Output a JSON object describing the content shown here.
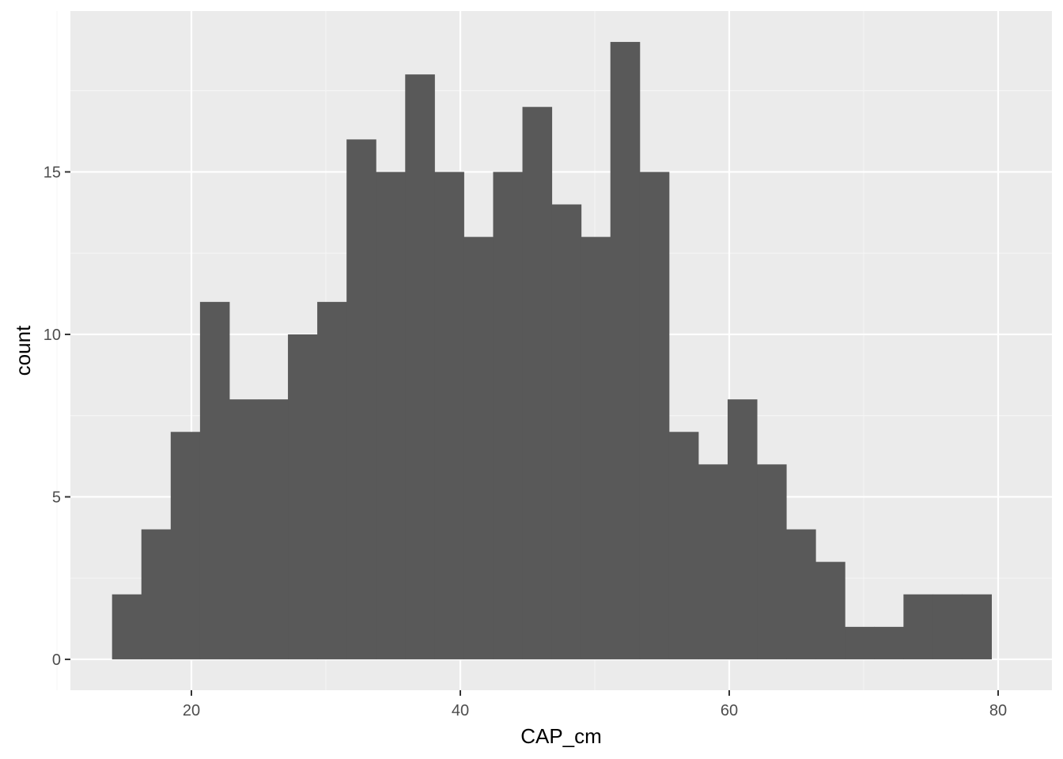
{
  "chart_data": {
    "type": "bar",
    "subtype": "histogram",
    "xlabel": "CAP_cm",
    "ylabel": "count",
    "xlim": [
      11,
      84
    ],
    "ylim": [
      -0.95,
      19.95
    ],
    "x_ticks": [
      20,
      40,
      60,
      80
    ],
    "y_ticks": [
      0,
      5,
      10,
      15
    ],
    "grid": true,
    "bin_width": 2.18,
    "bins": [
      {
        "start": 14.1,
        "end": 16.28,
        "count": 2
      },
      {
        "start": 16.28,
        "end": 18.46,
        "count": 4
      },
      {
        "start": 18.46,
        "end": 20.64,
        "count": 7
      },
      {
        "start": 20.64,
        "end": 22.82,
        "count": 11
      },
      {
        "start": 22.82,
        "end": 25.0,
        "count": 8
      },
      {
        "start": 25.0,
        "end": 27.18,
        "count": 8
      },
      {
        "start": 27.18,
        "end": 29.36,
        "count": 10
      },
      {
        "start": 29.36,
        "end": 31.54,
        "count": 11
      },
      {
        "start": 31.54,
        "end": 33.72,
        "count": 16
      },
      {
        "start": 33.72,
        "end": 35.9,
        "count": 15
      },
      {
        "start": 35.9,
        "end": 38.08,
        "count": 18
      },
      {
        "start": 38.08,
        "end": 40.26,
        "count": 15
      },
      {
        "start": 40.26,
        "end": 42.44,
        "count": 13
      },
      {
        "start": 42.44,
        "end": 44.62,
        "count": 15
      },
      {
        "start": 44.62,
        "end": 46.8,
        "count": 17
      },
      {
        "start": 46.8,
        "end": 48.98,
        "count": 14
      },
      {
        "start": 48.98,
        "end": 51.16,
        "count": 13
      },
      {
        "start": 51.16,
        "end": 53.34,
        "count": 19
      },
      {
        "start": 53.34,
        "end": 55.52,
        "count": 15
      },
      {
        "start": 55.52,
        "end": 57.7,
        "count": 7
      },
      {
        "start": 57.7,
        "end": 59.88,
        "count": 6
      },
      {
        "start": 59.88,
        "end": 62.06,
        "count": 8
      },
      {
        "start": 62.06,
        "end": 64.24,
        "count": 6
      },
      {
        "start": 64.24,
        "end": 66.42,
        "count": 4
      },
      {
        "start": 66.42,
        "end": 68.6,
        "count": 3
      },
      {
        "start": 68.6,
        "end": 70.78,
        "count": 1
      },
      {
        "start": 70.78,
        "end": 72.96,
        "count": 1
      },
      {
        "start": 72.96,
        "end": 75.14,
        "count": 2
      },
      {
        "start": 75.14,
        "end": 77.32,
        "count": 2
      },
      {
        "start": 77.32,
        "end": 79.5,
        "count": 2
      }
    ],
    "colors": {
      "panel_background": "#ebebeb",
      "grid_major": "#ffffff",
      "grid_minor": "#f5f5f5",
      "bar_fill": "#595959",
      "tick_text": "#4d4d4d",
      "tick_mark": "#333333",
      "title_text": "#000000"
    }
  }
}
